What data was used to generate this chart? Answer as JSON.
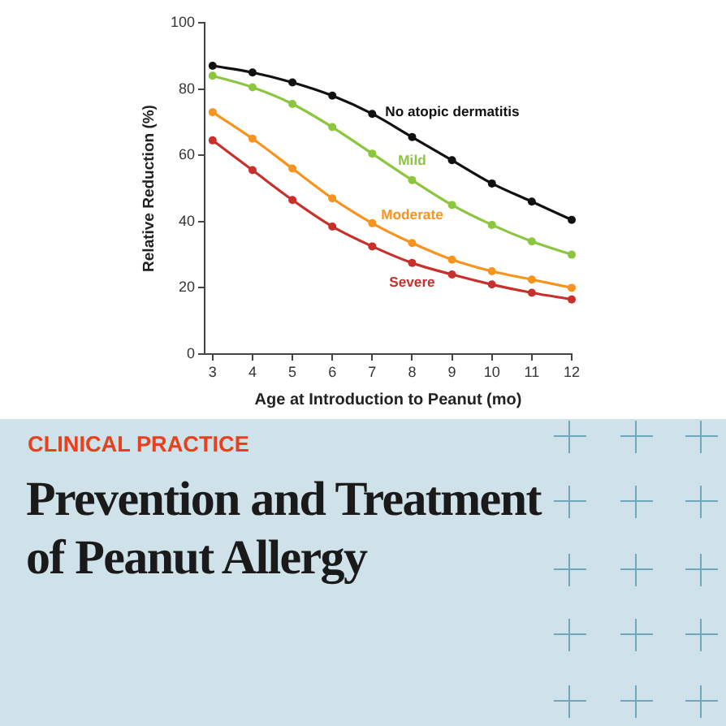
{
  "chart_data": {
    "type": "line",
    "title": "Prevention and Treatment of Peanut Allergy",
    "subtitle": "CLINICAL PRACTICE",
    "xlabel": "Age at Introduction to Peanut (mo)",
    "ylabel": "Relative Reduction (%)",
    "x": [
      3,
      4,
      5,
      6,
      7,
      8,
      9,
      10,
      11,
      12
    ],
    "series": [
      {
        "name": "No atopic dermatitis",
        "color": "#111111",
        "values": [
          87,
          85,
          82,
          78,
          72.5,
          65.5,
          58.5,
          51.5,
          46,
          40.5
        ]
      },
      {
        "name": "Mild",
        "color": "#8cc63e",
        "values": [
          84,
          80.5,
          75.5,
          68.5,
          60.5,
          52.5,
          45,
          39,
          34,
          30
        ]
      },
      {
        "name": "Moderate",
        "color": "#f7941d",
        "values": [
          73,
          65,
          56,
          47,
          39.5,
          33.5,
          28.5,
          25,
          22.5,
          20
        ]
      },
      {
        "name": "Severe",
        "color": "#c8302c",
        "values": [
          64.5,
          55.5,
          46.5,
          38.5,
          32.5,
          27.5,
          24,
          21,
          18.5,
          16.5
        ]
      }
    ],
    "xlim": [
      2.8,
      12
    ],
    "ylim": [
      0,
      100
    ],
    "xticks": [
      3,
      4,
      5,
      6,
      7,
      8,
      9,
      10,
      11,
      12
    ],
    "yticks": [
      0,
      20,
      40,
      60,
      80,
      100
    ],
    "grid": false,
    "legend": false,
    "marker": "circle",
    "line_style": "solid"
  }
}
